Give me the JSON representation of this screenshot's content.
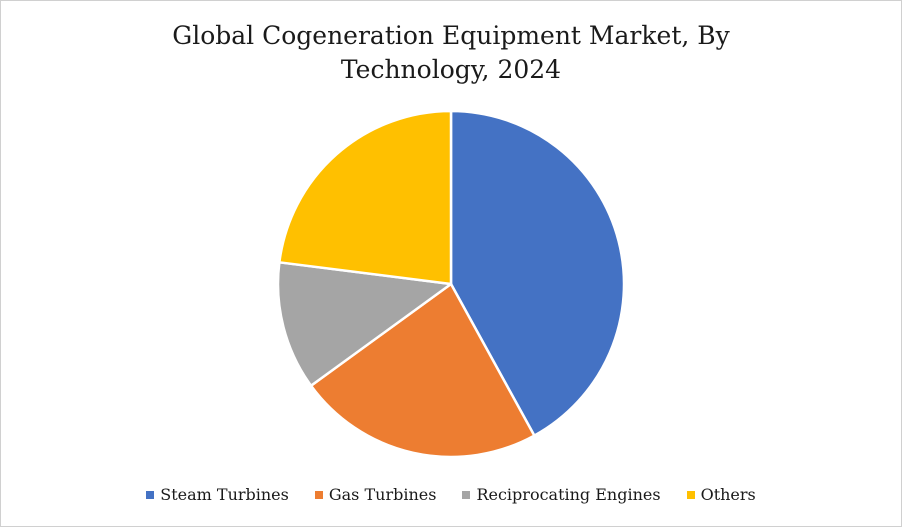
{
  "chart_data": {
    "type": "pie",
    "title_line1": "Global Cogeneration Equipment Market, By",
    "title_line2": "Technology, 2024",
    "categories": [
      "Steam Turbines",
      "Gas Turbines",
      "Reciprocating Engines",
      "Others"
    ],
    "values": [
      42,
      23,
      12,
      23
    ],
    "colors": [
      "#4472C4",
      "#ED7D31",
      "#A5A5A5",
      "#FFC000"
    ],
    "legend_position": "bottom"
  }
}
